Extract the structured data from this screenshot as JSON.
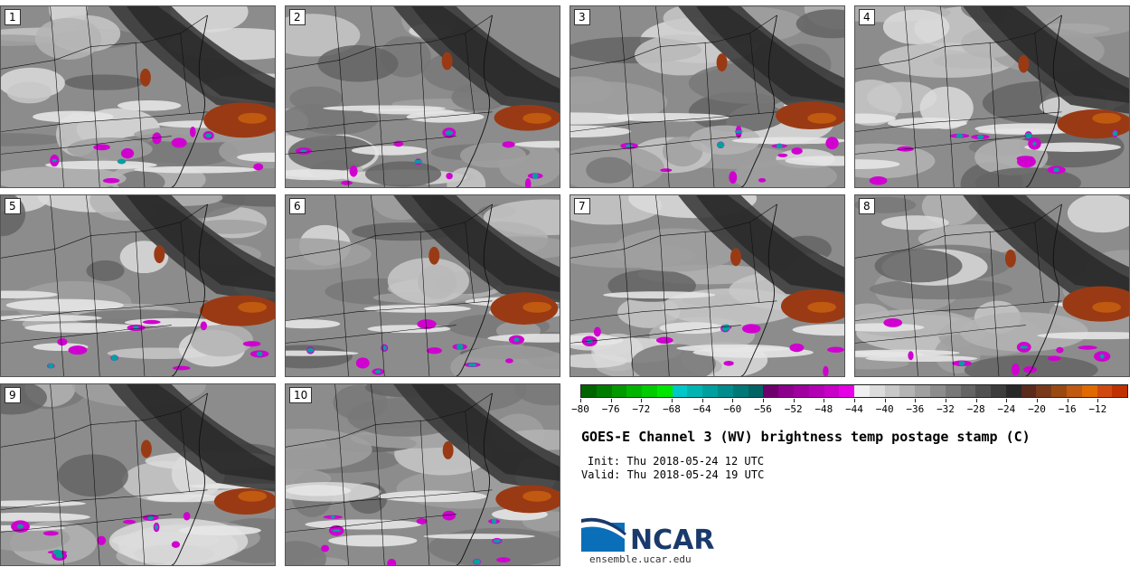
{
  "panels": [
    {
      "label": "1"
    },
    {
      "label": "2"
    },
    {
      "label": "3"
    },
    {
      "label": "4"
    },
    {
      "label": "5"
    },
    {
      "label": "6"
    },
    {
      "label": "7"
    },
    {
      "label": "8"
    },
    {
      "label": "9"
    },
    {
      "label": "10"
    }
  ],
  "colorbar": {
    "ticks": [
      "−80",
      "−76",
      "−72",
      "−68",
      "−64",
      "−60",
      "−56",
      "−52",
      "−48",
      "−44",
      "−40",
      "−36",
      "−32",
      "−28",
      "−24",
      "−20",
      "−16",
      "−12"
    ],
    "colors": [
      "#006400",
      "#007d00",
      "#009a00",
      "#00b400",
      "#00cc00",
      "#00e600",
      "#00c8c8",
      "#00b4b4",
      "#00a0a0",
      "#008c8c",
      "#007878",
      "#006464",
      "#6e006e",
      "#8c008c",
      "#a000a0",
      "#b400b4",
      "#c800c8",
      "#e600e6",
      "#f0f0f0",
      "#dcdcdc",
      "#c8c8c8",
      "#b4b4b4",
      "#a0a0a0",
      "#8c8c8c",
      "#787878",
      "#646464",
      "#505050",
      "#3c3c3c",
      "#282828",
      "#5a2a1a",
      "#7a3a1a",
      "#9a4a10",
      "#c05a10",
      "#e06a00",
      "#d04a10",
      "#c03000"
    ]
  },
  "title": "GOES-E Channel 3 (WV) brightness temp postage stamp (C)",
  "init": "Init: Thu 2018-05-24 12 UTC",
  "valid": "Valid: Thu 2018-05-24 19 UTC",
  "logo": {
    "text": "NCAR",
    "url": "ensemble.ucar.edu"
  }
}
